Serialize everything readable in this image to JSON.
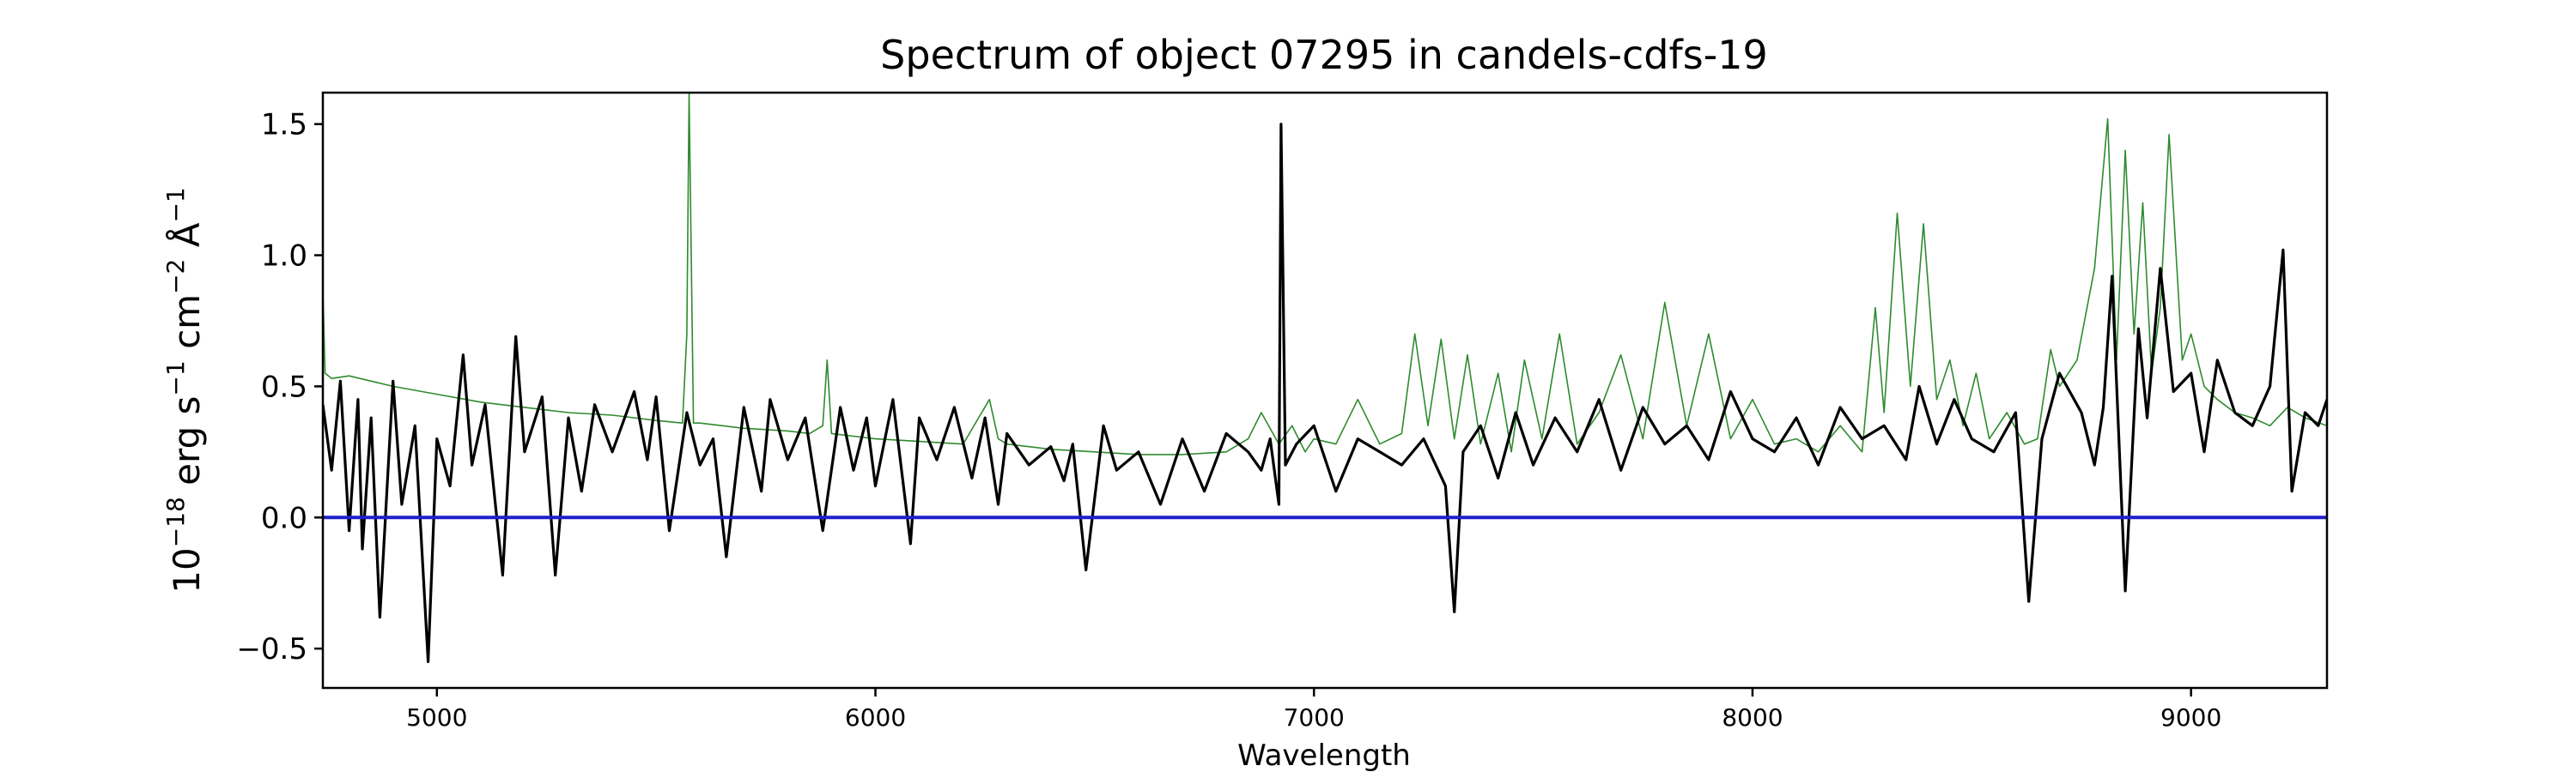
{
  "chart_data": {
    "type": "line",
    "title": "Spectrum of object 07295 in candels-cdfs-19",
    "xlabel": "Wavelength",
    "ylabel_base": "10",
    "ylabel_exp": "−18",
    "ylabel_rest": " erg s",
    "ylabel_exp2": "−1",
    "ylabel_unit2": " cm",
    "ylabel_exp3": "−2",
    "ylabel_unit3": " Å",
    "ylabel_exp4": "−1",
    "xlim": [
      4740,
      9310
    ],
    "ylim": [
      -0.65,
      1.62
    ],
    "xticks": [
      5000,
      6000,
      7000,
      8000,
      9000
    ],
    "xtick_labels": [
      "5000",
      "6000",
      "7000",
      "8000",
      "9000"
    ],
    "yticks": [
      -0.5,
      0.0,
      0.5,
      1.0,
      1.5
    ],
    "ytick_labels": [
      "−0.5",
      "0.0",
      "0.5",
      "1.0",
      "1.5"
    ],
    "grid": false,
    "series": [
      {
        "role": "flux",
        "color": "#000000",
        "x": [
          4740,
          4760,
          4780,
          4800,
          4820,
          4830,
          4850,
          4870,
          4900,
          4920,
          4950,
          4980,
          5000,
          5030,
          5060,
          5080,
          5110,
          5150,
          5180,
          5200,
          5240,
          5270,
          5300,
          5330,
          5360,
          5400,
          5450,
          5480,
          5500,
          5530,
          5570,
          5600,
          5630,
          5660,
          5700,
          5740,
          5760,
          5800,
          5840,
          5880,
          5920,
          5950,
          5980,
          6000,
          6040,
          6080,
          6100,
          6140,
          6180,
          6220,
          6250,
          6280,
          6300,
          6350,
          6400,
          6430,
          6450,
          6480,
          6520,
          6550,
          6600,
          6650,
          6700,
          6750,
          6800,
          6850,
          6880,
          6900,
          6920,
          6925,
          6935,
          6960,
          7000,
          7050,
          7100,
          7150,
          7200,
          7250,
          7300,
          7320,
          7340,
          7380,
          7420,
          7460,
          7500,
          7550,
          7600,
          7650,
          7700,
          7750,
          7800,
          7850,
          7900,
          7950,
          8000,
          8050,
          8100,
          8150,
          8200,
          8250,
          8300,
          8350,
          8380,
          8420,
          8460,
          8500,
          8550,
          8600,
          8630,
          8660,
          8700,
          8750,
          8780,
          8800,
          8820,
          8850,
          8880,
          8900,
          8930,
          8960,
          9000,
          9030,
          9060,
          9100,
          9140,
          9180,
          9210,
          9230,
          9260,
          9290,
          9310
        ],
        "y": [
          0.43,
          0.18,
          0.52,
          -0.05,
          0.45,
          -0.12,
          0.38,
          -0.38,
          0.52,
          0.05,
          0.35,
          -0.55,
          0.3,
          0.12,
          0.62,
          0.2,
          0.43,
          -0.22,
          0.69,
          0.25,
          0.46,
          -0.22,
          0.38,
          0.1,
          0.43,
          0.25,
          0.48,
          0.22,
          0.46,
          -0.05,
          0.4,
          0.2,
          0.3,
          -0.15,
          0.42,
          0.1,
          0.45,
          0.22,
          0.38,
          -0.05,
          0.42,
          0.18,
          0.38,
          0.12,
          0.45,
          -0.1,
          0.38,
          0.22,
          0.42,
          0.15,
          0.38,
          0.05,
          0.32,
          0.2,
          0.27,
          0.14,
          0.28,
          -0.2,
          0.35,
          0.18,
          0.25,
          0.05,
          0.3,
          0.1,
          0.32,
          0.25,
          0.18,
          0.3,
          0.05,
          1.5,
          0.2,
          0.28,
          0.35,
          0.1,
          0.3,
          0.25,
          0.2,
          0.3,
          0.12,
          -0.36,
          0.25,
          0.35,
          0.15,
          0.4,
          0.2,
          0.38,
          0.25,
          0.45,
          0.18,
          0.42,
          0.28,
          0.35,
          0.22,
          0.48,
          0.3,
          0.25,
          0.38,
          0.2,
          0.42,
          0.3,
          0.35,
          0.22,
          0.5,
          0.28,
          0.45,
          0.3,
          0.25,
          0.4,
          -0.32,
          0.3,
          0.55,
          0.4,
          0.2,
          0.42,
          0.92,
          -0.28,
          0.72,
          0.38,
          0.95,
          0.48,
          0.55,
          0.25,
          0.6,
          0.4,
          0.35,
          0.5,
          1.02,
          0.1,
          0.4,
          0.35,
          0.45
        ]
      },
      {
        "role": "model",
        "color": "#2e8b2e",
        "x": [
          4740,
          4745,
          4760,
          4800,
          4850,
          4900,
          5000,
          5100,
          5200,
          5300,
          5400,
          5500,
          5560,
          5570,
          5575,
          5585,
          5600,
          5700,
          5800,
          5850,
          5880,
          5890,
          5900,
          5950,
          6000,
          6100,
          6200,
          6260,
          6280,
          6300,
          6350,
          6400,
          6500,
          6600,
          6700,
          6800,
          6850,
          6880,
          6920,
          6950,
          6980,
          7000,
          7050,
          7100,
          7150,
          7200,
          7230,
          7260,
          7290,
          7320,
          7350,
          7380,
          7420,
          7450,
          7480,
          7520,
          7560,
          7600,
          7650,
          7700,
          7750,
          7800,
          7850,
          7900,
          7950,
          8000,
          8050,
          8100,
          8150,
          8200,
          8250,
          8280,
          8300,
          8330,
          8360,
          8390,
          8420,
          8450,
          8480,
          8510,
          8540,
          8580,
          8620,
          8650,
          8680,
          8700,
          8740,
          8780,
          8810,
          8830,
          8850,
          8870,
          8890,
          8910,
          8930,
          8950,
          8980,
          9000,
          9030,
          9060,
          9100,
          9140,
          9180,
          9220,
          9260,
          9310
        ],
        "y": [
          0.87,
          0.55,
          0.53,
          0.54,
          0.52,
          0.5,
          0.47,
          0.44,
          0.42,
          0.4,
          0.39,
          0.37,
          0.36,
          0.7,
          1.62,
          0.36,
          0.36,
          0.34,
          0.33,
          0.32,
          0.35,
          0.6,
          0.32,
          0.31,
          0.3,
          0.29,
          0.28,
          0.45,
          0.3,
          0.28,
          0.27,
          0.26,
          0.25,
          0.24,
          0.24,
          0.25,
          0.3,
          0.4,
          0.28,
          0.35,
          0.25,
          0.3,
          0.28,
          0.45,
          0.28,
          0.32,
          0.7,
          0.35,
          0.68,
          0.3,
          0.62,
          0.28,
          0.55,
          0.25,
          0.6,
          0.3,
          0.7,
          0.28,
          0.4,
          0.62,
          0.3,
          0.82,
          0.35,
          0.7,
          0.3,
          0.45,
          0.28,
          0.3,
          0.25,
          0.35,
          0.25,
          0.8,
          0.4,
          1.16,
          0.5,
          1.12,
          0.45,
          0.6,
          0.35,
          0.55,
          0.3,
          0.4,
          0.28,
          0.3,
          0.64,
          0.5,
          0.6,
          0.95,
          1.52,
          0.6,
          1.4,
          0.7,
          1.2,
          0.55,
          0.8,
          1.46,
          0.6,
          0.7,
          0.5,
          0.45,
          0.4,
          0.38,
          0.35,
          0.42,
          0.38,
          0.35
        ]
      },
      {
        "role": "zero",
        "color": "#1f1fcc",
        "x": [
          4740,
          9310
        ],
        "y": [
          0.0,
          0.0
        ]
      }
    ]
  }
}
